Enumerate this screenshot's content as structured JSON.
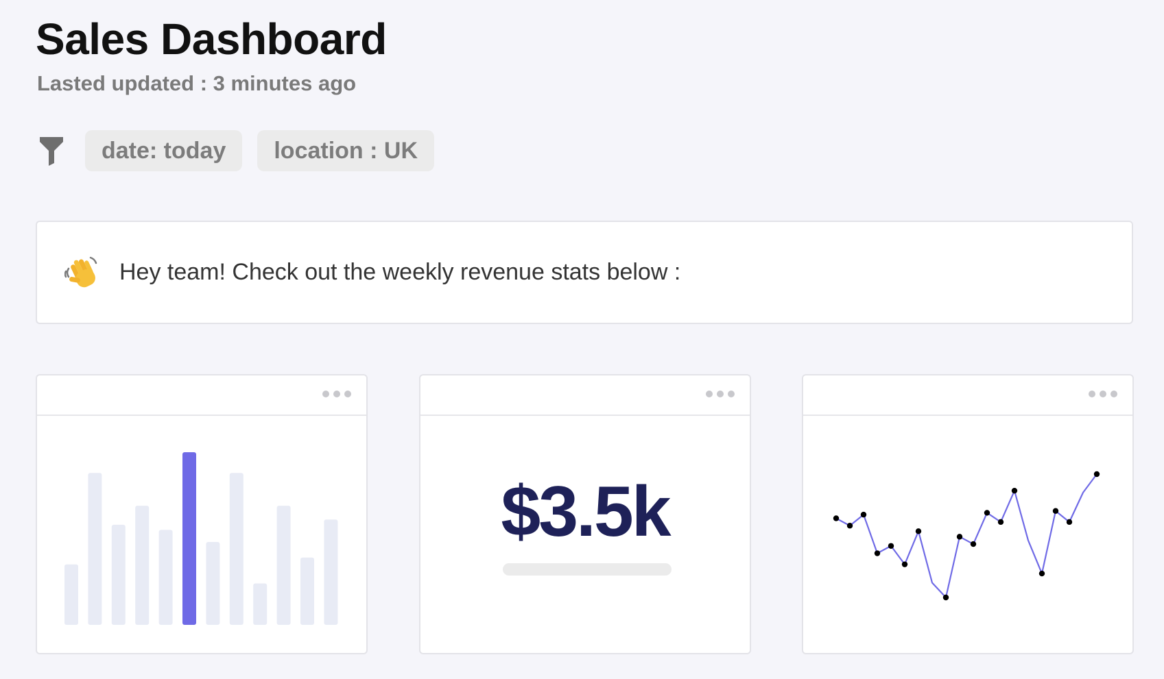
{
  "header": {
    "title": "Sales Dashboard",
    "subtitle": "Lasted updated : 3 minutes ago"
  },
  "filters": {
    "icon": "filter-icon",
    "chips": [
      {
        "label": "date: today"
      },
      {
        "label": "location : UK"
      }
    ]
  },
  "notice": {
    "icon": "waving-hand-icon",
    "text": "Hey team! Check out the weekly revenue stats below :"
  },
  "cards": [
    {
      "menu_icon": "more-options-icon"
    },
    {
      "menu_icon": "more-options-icon",
      "value": "$3.5k"
    },
    {
      "menu_icon": "more-options-icon"
    }
  ],
  "colors": {
    "accent": "#6f6ae6",
    "bar_inactive": "#e8ebf5",
    "value_text": "#1e2158"
  },
  "chart_data": [
    {
      "type": "bar",
      "values": [
        35,
        88,
        58,
        69,
        55,
        100,
        48,
        88,
        24,
        69,
        39,
        61
      ],
      "highlight_index": 5,
      "ylim": [
        0,
        100
      ],
      "grid": false
    },
    {
      "type": "line",
      "x": [
        0,
        1,
        2,
        3,
        4,
        5,
        6,
        7,
        8,
        9,
        10,
        11,
        12,
        13,
        14,
        15,
        16,
        17,
        18,
        19
      ],
      "values": [
        60,
        56,
        62,
        41,
        45,
        35,
        53,
        25,
        17,
        50,
        46,
        63,
        58,
        75,
        48,
        30,
        64,
        58,
        74,
        84
      ],
      "markers": [
        true,
        true,
        true,
        true,
        true,
        true,
        true,
        false,
        true,
        true,
        true,
        true,
        true,
        true,
        false,
        true,
        true,
        true,
        false,
        true
      ],
      "ylim": [
        0,
        100
      ],
      "grid": false
    }
  ]
}
